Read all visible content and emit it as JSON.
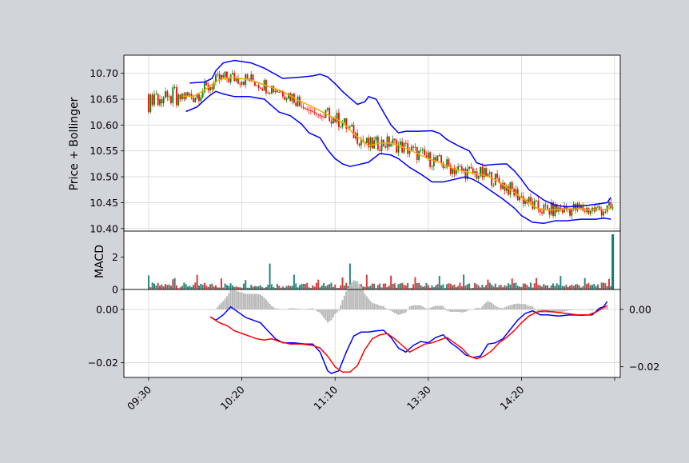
{
  "chart_data": [
    {
      "type": "line",
      "panel": "price",
      "ylabel": "Price + Bollinger",
      "ylim": [
        10.395,
        10.735
      ],
      "yticks": [
        "10.40",
        "10.45",
        "10.50",
        "10.55",
        "10.60",
        "10.65",
        "10.70"
      ],
      "grid": true,
      "series": [
        {
          "role": "upper-band",
          "color": "#0000ff",
          "points": [
            [
              22,
              10.681
            ],
            [
              30,
              10.683
            ],
            [
              34,
              10.69
            ],
            [
              36,
              10.705
            ],
            [
              40,
              10.72
            ],
            [
              46,
              10.725
            ],
            [
              55,
              10.72
            ],
            [
              62,
              10.71
            ],
            [
              72,
              10.69
            ],
            [
              80,
              10.692
            ],
            [
              88,
              10.695
            ],
            [
              92,
              10.698
            ],
            [
              96,
              10.693
            ],
            [
              100,
              10.68
            ],
            [
              104,
              10.665
            ],
            [
              108,
              10.652
            ],
            [
              112,
              10.64
            ],
            [
              116,
              10.645
            ],
            [
              118,
              10.655
            ],
            [
              122,
              10.65
            ],
            [
              126,
              10.625
            ],
            [
              130,
              10.6
            ],
            [
              134,
              10.585
            ],
            [
              138,
              10.588
            ],
            [
              145,
              10.588
            ],
            [
              152,
              10.589
            ],
            [
              156,
              10.584
            ],
            [
              160,
              10.572
            ],
            [
              166,
              10.56
            ],
            [
              172,
              10.55
            ],
            [
              176,
              10.527
            ],
            [
              180,
              10.522
            ],
            [
              186,
              10.524
            ],
            [
              192,
              10.525
            ],
            [
              196,
              10.512
            ],
            [
              200,
              10.495
            ],
            [
              204,
              10.475
            ],
            [
              208,
              10.465
            ],
            [
              212,
              10.455
            ],
            [
              218,
              10.445
            ],
            [
              224,
              10.442
            ],
            [
              230,
              10.443
            ],
            [
              236,
              10.445
            ],
            [
              242,
              10.448
            ],
            [
              246,
              10.45
            ],
            [
              248,
              10.46
            ]
          ]
        },
        {
          "role": "middle-band",
          "color": "#ffa500",
          "points": [
            [
              18,
              10.656
            ],
            [
              24,
              10.655
            ],
            [
              30,
              10.668
            ],
            [
              38,
              10.688
            ],
            [
              44,
              10.692
            ],
            [
              54,
              10.688
            ],
            [
              64,
              10.675
            ],
            [
              72,
              10.665
            ],
            [
              80,
              10.648
            ],
            [
              88,
              10.635
            ],
            [
              96,
              10.62
            ],
            [
              104,
              10.605
            ],
            [
              110,
              10.583
            ],
            [
              114,
              10.572
            ],
            [
              118,
              10.56
            ],
            [
              124,
              10.565
            ],
            [
              130,
              10.565
            ],
            [
              138,
              10.555
            ],
            [
              144,
              10.545
            ],
            [
              150,
              10.535
            ],
            [
              156,
              10.528
            ],
            [
              164,
              10.515
            ],
            [
              172,
              10.508
            ],
            [
              178,
              10.505
            ],
            [
              184,
              10.498
            ],
            [
              190,
              10.485
            ],
            [
              196,
              10.47
            ],
            [
              202,
              10.455
            ],
            [
              208,
              10.44
            ],
            [
              214,
              10.435
            ],
            [
              220,
              10.437
            ],
            [
              230,
              10.438
            ],
            [
              240,
              10.436
            ],
            [
              248,
              10.438
            ]
          ]
        },
        {
          "role": "lower-band",
          "color": "#0000ff",
          "points": [
            [
              20,
              10.626
            ],
            [
              26,
              10.635
            ],
            [
              32,
              10.655
            ],
            [
              36,
              10.665
            ],
            [
              40,
              10.66
            ],
            [
              46,
              10.655
            ],
            [
              54,
              10.655
            ],
            [
              62,
              10.65
            ],
            [
              70,
              10.625
            ],
            [
              76,
              10.618
            ],
            [
              82,
              10.602
            ],
            [
              86,
              10.585
            ],
            [
              92,
              10.575
            ],
            [
              96,
              10.552
            ],
            [
              100,
              10.535
            ],
            [
              104,
              10.525
            ],
            [
              108,
              10.52
            ],
            [
              112,
              10.523
            ],
            [
              118,
              10.528
            ],
            [
              124,
              10.545
            ],
            [
              130,
              10.542
            ],
            [
              134,
              10.535
            ],
            [
              140,
              10.518
            ],
            [
              146,
              10.505
            ],
            [
              152,
              10.49
            ],
            [
              158,
              10.49
            ],
            [
              164,
              10.495
            ],
            [
              170,
              10.5
            ],
            [
              174,
              10.495
            ],
            [
              178,
              10.487
            ],
            [
              184,
              10.472
            ],
            [
              190,
              10.457
            ],
            [
              196,
              10.44
            ],
            [
              200,
              10.425
            ],
            [
              206,
              10.412
            ],
            [
              212,
              10.41
            ],
            [
              218,
              10.415
            ],
            [
              224,
              10.415
            ],
            [
              232,
              10.418
            ],
            [
              240,
              10.418
            ],
            [
              244,
              10.42
            ],
            [
              248,
              10.418
            ]
          ]
        }
      ]
    },
    {
      "type": "bar",
      "panel": "volume",
      "ylabel": "MACD",
      "ylim": [
        0,
        3.6
      ],
      "yticks": [
        "0",
        "2"
      ],
      "last_bar": {
        "x": 249,
        "value": 3.4
      }
    },
    {
      "type": "line",
      "panel": "macd",
      "ylim": [
        -0.0255,
        0.0075
      ],
      "yticks_left": [
        "−0.02",
        "0.00"
      ],
      "yticks_right": [
        "−0.02",
        "0.00"
      ],
      "xticks": [
        {
          "x": 0,
          "label": "09:30"
        },
        {
          "x": 50,
          "label": "10:20"
        },
        {
          "x": 100,
          "label": "11:10"
        },
        {
          "x": 150,
          "label": "13:30"
        },
        {
          "x": 200,
          "label": "14:20"
        },
        {
          "x": 250,
          "label": ""
        }
      ],
      "series": [
        {
          "role": "macd",
          "color": "#0000ff",
          "points": [
            [
              33,
              -0.0028
            ],
            [
              36,
              -0.004
            ],
            [
              40,
              -0.002
            ],
            [
              44,
              0.001
            ],
            [
              48,
              -0.001
            ],
            [
              52,
              -0.003
            ],
            [
              56,
              -0.004
            ],
            [
              60,
              -0.005
            ],
            [
              64,
              -0.008
            ],
            [
              68,
              -0.011
            ],
            [
              72,
              -0.0125
            ],
            [
              78,
              -0.0125
            ],
            [
              84,
              -0.013
            ],
            [
              88,
              -0.013
            ],
            [
              92,
              -0.016
            ],
            [
              96,
              -0.023
            ],
            [
              98,
              -0.024
            ],
            [
              102,
              -0.023
            ],
            [
              106,
              -0.016
            ],
            [
              110,
              -0.01
            ],
            [
              114,
              -0.0085
            ],
            [
              118,
              -0.0085
            ],
            [
              122,
              -0.008
            ],
            [
              126,
              -0.0078
            ],
            [
              130,
              -0.0105
            ],
            [
              134,
              -0.0145
            ],
            [
              138,
              -0.016
            ],
            [
              142,
              -0.0135
            ],
            [
              146,
              -0.012
            ],
            [
              150,
              -0.0125
            ],
            [
              154,
              -0.0105
            ],
            [
              158,
              -0.0095
            ],
            [
              162,
              -0.0125
            ],
            [
              166,
              -0.0145
            ],
            [
              170,
              -0.017
            ],
            [
              174,
              -0.018
            ],
            [
              178,
              -0.0175
            ],
            [
              182,
              -0.013
            ],
            [
              186,
              -0.0125
            ],
            [
              190,
              -0.011
            ],
            [
              194,
              -0.0075
            ],
            [
              198,
              -0.004
            ],
            [
              202,
              -0.0015
            ],
            [
              206,
              -0.0005
            ],
            [
              210,
              -0.002
            ],
            [
              214,
              -0.002
            ],
            [
              220,
              -0.0025
            ],
            [
              226,
              -0.002
            ],
            [
              232,
              -0.0022
            ],
            [
              238,
              -0.002
            ],
            [
              242,
              0.0005
            ],
            [
              244,
              0.001
            ],
            [
              246,
              0.003
            ]
          ]
        },
        {
          "role": "signal",
          "color": "#ff0000",
          "points": [
            [
              33,
              -0.0028
            ],
            [
              38,
              -0.005
            ],
            [
              42,
              -0.006
            ],
            [
              46,
              -0.008
            ],
            [
              50,
              -0.009
            ],
            [
              54,
              -0.01
            ],
            [
              58,
              -0.011
            ],
            [
              62,
              -0.0115
            ],
            [
              66,
              -0.011
            ],
            [
              70,
              -0.012
            ],
            [
              76,
              -0.013
            ],
            [
              82,
              -0.013
            ],
            [
              88,
              -0.0135
            ],
            [
              92,
              -0.0145
            ],
            [
              96,
              -0.0175
            ],
            [
              100,
              -0.0215
            ],
            [
              104,
              -0.0235
            ],
            [
              108,
              -0.0235
            ],
            [
              112,
              -0.021
            ],
            [
              116,
              -0.015
            ],
            [
              120,
              -0.011
            ],
            [
              124,
              -0.0095
            ],
            [
              128,
              -0.009
            ],
            [
              132,
              -0.011
            ],
            [
              136,
              -0.0135
            ],
            [
              140,
              -0.016
            ],
            [
              144,
              -0.0145
            ],
            [
              148,
              -0.013
            ],
            [
              152,
              -0.0125
            ],
            [
              156,
              -0.0115
            ],
            [
              160,
              -0.0105
            ],
            [
              164,
              -0.0125
            ],
            [
              168,
              -0.0145
            ],
            [
              172,
              -0.0175
            ],
            [
              176,
              -0.0185
            ],
            [
              180,
              -0.0175
            ],
            [
              184,
              -0.0155
            ],
            [
              188,
              -0.0125
            ],
            [
              192,
              -0.0105
            ],
            [
              196,
              -0.008
            ],
            [
              200,
              -0.005
            ],
            [
              204,
              -0.0025
            ],
            [
              208,
              -0.001
            ],
            [
              212,
              -0.0005
            ],
            [
              218,
              -0.001
            ],
            [
              224,
              -0.0015
            ],
            [
              230,
              -0.002
            ],
            [
              236,
              -0.002
            ],
            [
              240,
              -0.001
            ],
            [
              246,
              0.0015
            ]
          ]
        }
      ],
      "histogram_color": "#b8b8b8"
    }
  ],
  "candles": {
    "up_color": "#008000",
    "down_color": "#ff0000",
    "open_price": 10.66,
    "close_price": 10.452
  }
}
